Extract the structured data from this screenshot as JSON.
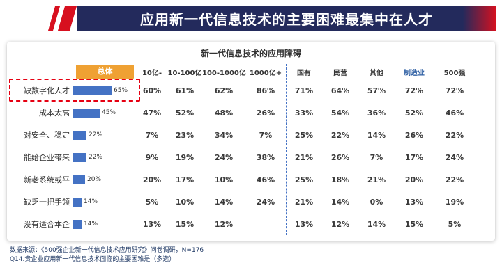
{
  "banner": {
    "title": "应用新一代信息技术的主要困难最集中在人才"
  },
  "card": {
    "title": "新一代信息技术的应用障碍"
  },
  "chart_data": {
    "type": "bar",
    "title": "新一代信息技术的应用障碍",
    "overall_header": "总体",
    "categories": [
      "缺数字化人才",
      "成本太高",
      "对安全、稳定",
      "能给企业带来",
      "新老系统或平",
      "缺乏一把手领",
      "没有适合本企"
    ],
    "values": [
      65,
      45,
      22,
      22,
      20,
      14,
      14
    ],
    "bar_color": "#4472C4",
    "highlight_row": "缺数字化人才",
    "columns": [
      "10亿-",
      "10-100亿",
      "100-1000亿",
      "1000亿+",
      "国有",
      "民营",
      "其他",
      "制造业",
      "500强"
    ],
    "rows": [
      {
        "label": "缺数字化人才",
        "overall": 65,
        "values": [
          "60%",
          "61%",
          "62%",
          "86%",
          "71%",
          "64%",
          "57%",
          "72%",
          "72%"
        ]
      },
      {
        "label": "成本太高",
        "overall": 45,
        "values": [
          "47%",
          "52%",
          "48%",
          "26%",
          "33%",
          "54%",
          "36%",
          "52%",
          "46%"
        ]
      },
      {
        "label": "对安全、稳定",
        "overall": 22,
        "values": [
          "7%",
          "23%",
          "34%",
          "7%",
          "25%",
          "22%",
          "14%",
          "26%",
          "22%"
        ]
      },
      {
        "label": "能给企业带来",
        "overall": 22,
        "values": [
          "9%",
          "19%",
          "24%",
          "38%",
          "21%",
          "26%",
          "7%",
          "17%",
          "24%"
        ]
      },
      {
        "label": "新老系统或平",
        "overall": 20,
        "values": [
          "20%",
          "17%",
          "10%",
          "46%",
          "25%",
          "18%",
          "21%",
          "20%",
          "22%"
        ]
      },
      {
        "label": "缺乏一把手领",
        "overall": 14,
        "values": [
          "5%",
          "10%",
          "14%",
          "24%",
          "21%",
          "14%",
          "0%",
          "13%",
          "19%"
        ]
      },
      {
        "label": "没有适合本企",
        "overall": 14,
        "values": [
          "13%",
          "15%",
          "12%",
          "",
          "13%",
          "12%",
          "14%",
          "15%",
          "5%"
        ]
      }
    ]
  },
  "colors": {
    "banner_navy": "#232a5c",
    "accent_red": "#d7101f",
    "overall_orange": "#efa133",
    "bar_blue": "#4472C4"
  },
  "footer": {
    "source": "数据来源：《500强企业新一代信息技术应用研究》问卷调研，N=176",
    "question": "Q14.贵企业应用新一代信息技术面临的主要困难是（多选）"
  }
}
